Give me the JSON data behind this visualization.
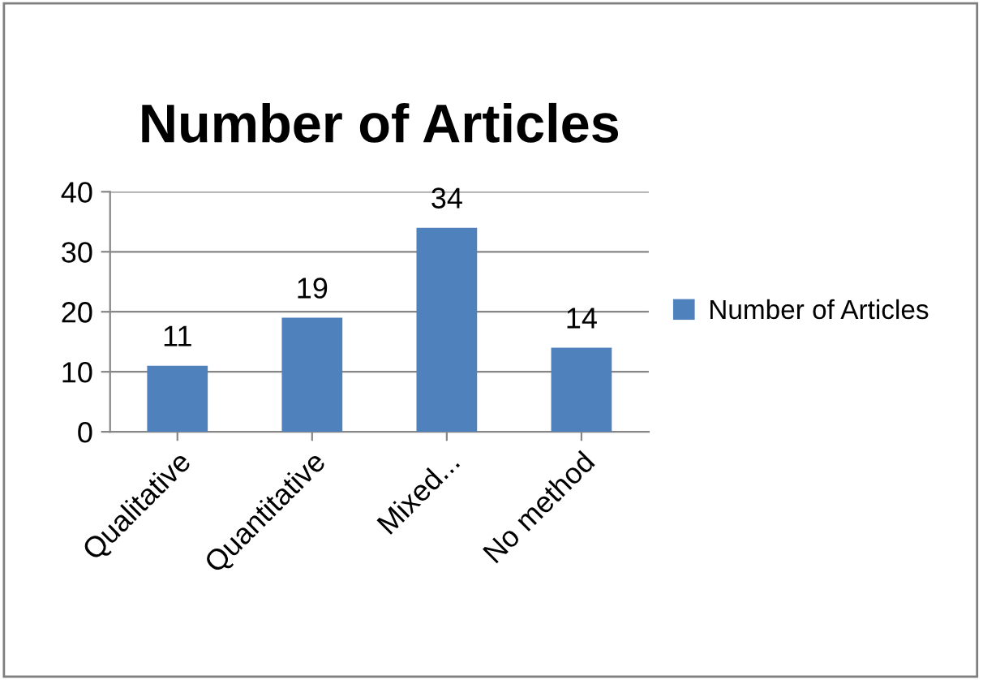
{
  "chart_data": {
    "type": "bar",
    "title": "Number of Articles",
    "categories": [
      "Qualitative",
      "Quantitative",
      "Mixed...",
      "No method"
    ],
    "series": [
      {
        "name": "Number of Articles",
        "color": "#4f81bd",
        "values": [
          11,
          19,
          34,
          14
        ]
      }
    ],
    "ylim": [
      0,
      40
    ],
    "yticks": [
      0,
      10,
      20,
      30,
      40
    ],
    "grid": "y",
    "legend": "right",
    "data_labels": true
  }
}
